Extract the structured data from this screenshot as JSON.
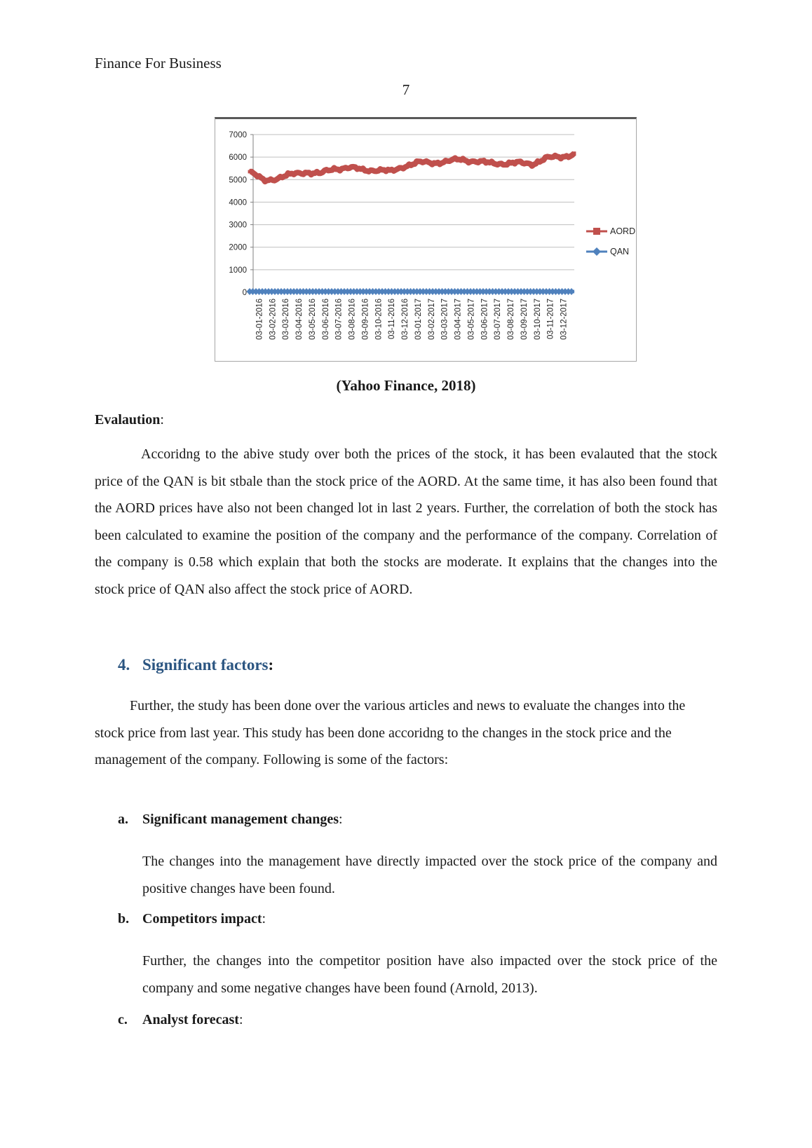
{
  "page": {
    "header_title": "Finance For Business",
    "page_number": "7"
  },
  "chart": {
    "caption": "(Yahoo Finance, 2018)"
  },
  "chart_data": {
    "type": "line",
    "title": "",
    "xlabel": "",
    "ylabel": "",
    "ylim": [
      0,
      7000
    ],
    "ytick_step": 1000,
    "grid": true,
    "legend_position": "right",
    "categories": [
      "03-01-2016",
      "03-02-2016",
      "03-03-2016",
      "03-04-2016",
      "03-05-2016",
      "03-06-2016",
      "03-07-2016",
      "03-08-2016",
      "03-09-2016",
      "03-10-2016",
      "03-11-2016",
      "03-12-2016",
      "03-01-2017",
      "03-02-2017",
      "03-03-2017",
      "03-04-2017",
      "03-05-2017",
      "03-06-2017",
      "03-07-2017",
      "03-08-2017",
      "03-09-2017",
      "03-10-2017",
      "03-11-2017",
      "03-12-2017"
    ],
    "series": [
      {
        "name": "AORD",
        "color": "#C0504D",
        "marker": "square",
        "values": [
          5350,
          4950,
          5080,
          5220,
          5350,
          5250,
          5500,
          5530,
          5430,
          5440,
          5350,
          5620,
          5750,
          5760,
          5800,
          5900,
          5820,
          5720,
          5730,
          5730,
          5700,
          5950,
          6000,
          6150
        ]
      },
      {
        "name": "QAN",
        "color": "#4F81BD",
        "marker": "diamond",
        "values": [
          0,
          0,
          0,
          0,
          0,
          0,
          0,
          0,
          0,
          0,
          0,
          0,
          0,
          0,
          0,
          0,
          0,
          0,
          0,
          0,
          0,
          0,
          0,
          0
        ]
      }
    ]
  },
  "sections": {
    "evaluation_heading": "Evalaution",
    "evaluation_colon": ":",
    "evaluation_paragraph": "Accoridng to the abive study over both the prices of the stock, it has been evalauted that the stock price of the QAN is bit stbale than the stock price of the AORD. At the same time, it has also been found that the AORD prices have also not been changed lot in last 2 years. Further, the correlation of both the stock has been calculated to examine the position of the company and the performance of the company. Correlation of the company is 0.58 which explain that both the stocks are moderate. It explains that the changes into the stock price of QAN also affect the stock price of AORD.",
    "factors_heading_number": "4.",
    "factors_heading_label": "Significant factors",
    "factors_heading_colon": ":",
    "factors_paragraph": "Further, the study has been done over the various articles and news to evaluate the changes into the stock price from last year. This study has been done accoridng to the changes in the stock price and the management of the company. Following is some of the factors:",
    "items": [
      {
        "marker": "a.",
        "label": "Significant management changes",
        "colon": ":",
        "body": "The changes into the management have directly impacted over the stock price of the company and positive changes have been found."
      },
      {
        "marker": "b.",
        "label": "Competitors impact",
        "colon": ":",
        "body": "Further, the changes into the competitor position have also impacted over the stock price of the company and some negative changes have been found (Arnold, 2013)."
      },
      {
        "marker": "c.",
        "label": "Analyst forecast",
        "colon": ":",
        "body": ""
      }
    ]
  },
  "colors": {
    "aord_red": "#C0504D",
    "qan_blue": "#4F81BD",
    "heading_blue": "#2B5581",
    "gridline": "#BFBFBF",
    "axis": "#808080",
    "chart_border": "#A6A6A6"
  }
}
